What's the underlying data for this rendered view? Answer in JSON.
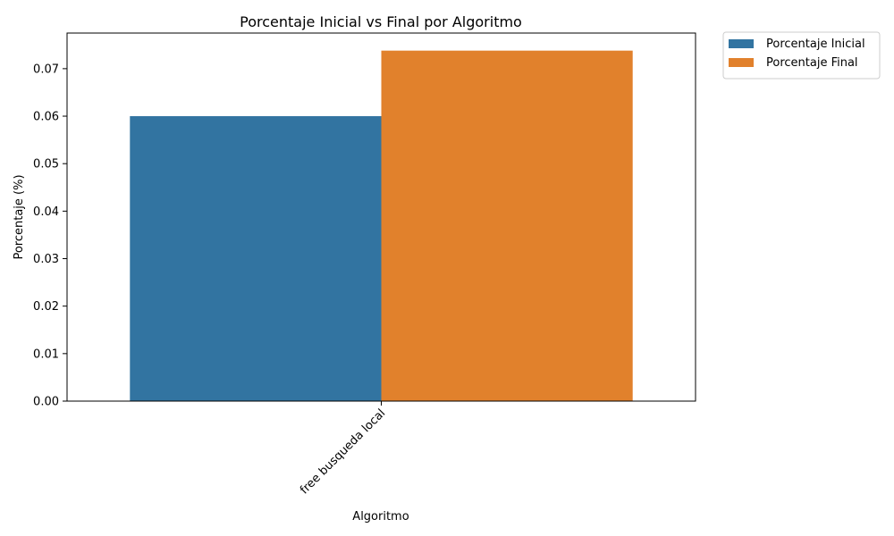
{
  "chart_data": {
    "type": "bar",
    "title": "Porcentaje Inicial vs Final por Algoritmo",
    "xlabel": "Algoritmo",
    "ylabel": "Porcentaje (%)",
    "categories": [
      "free busqueda local"
    ],
    "series": [
      {
        "name": "Porcentaje Inicial",
        "values": [
          0.06
        ],
        "color": "#3274a1"
      },
      {
        "name": "Porcentaje Final",
        "values": [
          0.0738
        ],
        "color": "#e1812c"
      }
    ],
    "ylim": [
      0,
      0.0775
    ],
    "yticks": [
      "0.00",
      "0.01",
      "0.02",
      "0.03",
      "0.04",
      "0.05",
      "0.06",
      "0.07"
    ],
    "grid": false,
    "legend_position": "outside-top-right"
  }
}
